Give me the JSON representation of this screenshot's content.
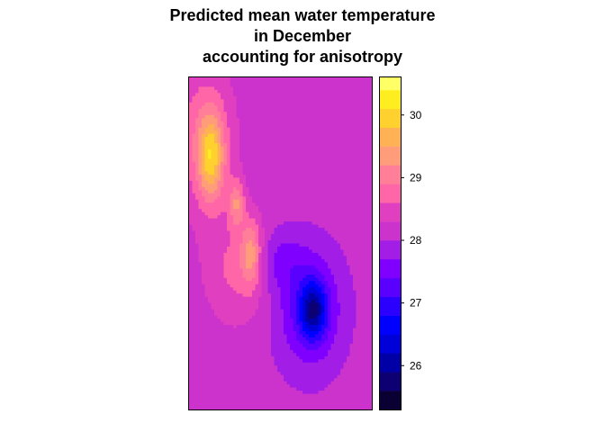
{
  "chart_data": {
    "type": "heatmap",
    "title_lines": [
      "Predicted mean water temperature",
      "in December",
      "accounting for anisotropy"
    ],
    "xlabel": "",
    "ylabel": "",
    "background_value": 28.1,
    "colorbar": {
      "range": [
        25.3,
        30.6
      ],
      "ticks": [
        26,
        27,
        28,
        29,
        30
      ],
      "tick_labels": [
        "26",
        "27",
        "28",
        "29",
        "30"
      ],
      "levels": [
        {
          "from": 25.3,
          "to": 25.6,
          "color": "#0a0033"
        },
        {
          "from": 25.6,
          "to": 25.9,
          "color": "#0d0073"
        },
        {
          "from": 25.9,
          "to": 26.2,
          "color": "#0000a6"
        },
        {
          "from": 26.2,
          "to": 26.5,
          "color": "#0000d9"
        },
        {
          "from": 26.5,
          "to": 26.8,
          "color": "#0000ff"
        },
        {
          "from": 26.8,
          "to": 27.1,
          "color": "#2b00ff"
        },
        {
          "from": 27.1,
          "to": 27.4,
          "color": "#5a00ff"
        },
        {
          "from": 27.4,
          "to": 27.7,
          "color": "#8000ff"
        },
        {
          "from": 27.7,
          "to": 28.0,
          "color": "#a21ee6"
        },
        {
          "from": 28.0,
          "to": 28.3,
          "color": "#cc33cc"
        },
        {
          "from": 28.3,
          "to": 28.6,
          "color": "#e040c0"
        },
        {
          "from": 28.6,
          "to": 28.9,
          "color": "#ff66a8"
        },
        {
          "from": 28.9,
          "to": 29.2,
          "color": "#ff7e98"
        },
        {
          "from": 29.2,
          "to": 29.5,
          "color": "#ff9c7a"
        },
        {
          "from": 29.5,
          "to": 29.8,
          "color": "#ffb255"
        },
        {
          "from": 29.8,
          "to": 30.1,
          "color": "#ffd12e"
        },
        {
          "from": 30.1,
          "to": 30.4,
          "color": "#ffee1f"
        },
        {
          "from": 30.4,
          "to": 30.6,
          "color": "#ffff66"
        }
      ]
    },
    "features": [
      {
        "name": "warm-ridge",
        "x": 0.08,
        "y": 0.18,
        "sx": 0.12,
        "sy": 0.16,
        "amp": 0.7
      },
      {
        "name": "warm-peak-north",
        "x": 0.12,
        "y": 0.24,
        "sx": 0.05,
        "sy": 0.09,
        "amp": 1.4
      },
      {
        "name": "warm-peak-mid",
        "x": 0.26,
        "y": 0.38,
        "sx": 0.03,
        "sy": 0.05,
        "amp": 0.9
      },
      {
        "name": "warm-peak-south",
        "x": 0.34,
        "y": 0.53,
        "sx": 0.04,
        "sy": 0.07,
        "amp": 1.0
      },
      {
        "name": "warm-tail",
        "x": 0.25,
        "y": 0.58,
        "sx": 0.12,
        "sy": 0.12,
        "amp": 0.55
      },
      {
        "name": "cool-trough",
        "x": 0.66,
        "y": 0.7,
        "sx": 0.12,
        "sy": 0.12,
        "amp": -0.9
      },
      {
        "name": "cool-core",
        "x": 0.68,
        "y": 0.7,
        "sx": 0.05,
        "sy": 0.06,
        "amp": -1.5
      },
      {
        "name": "cool-arm",
        "x": 0.5,
        "y": 0.55,
        "sx": 0.1,
        "sy": 0.06,
        "amp": -0.45
      }
    ]
  }
}
